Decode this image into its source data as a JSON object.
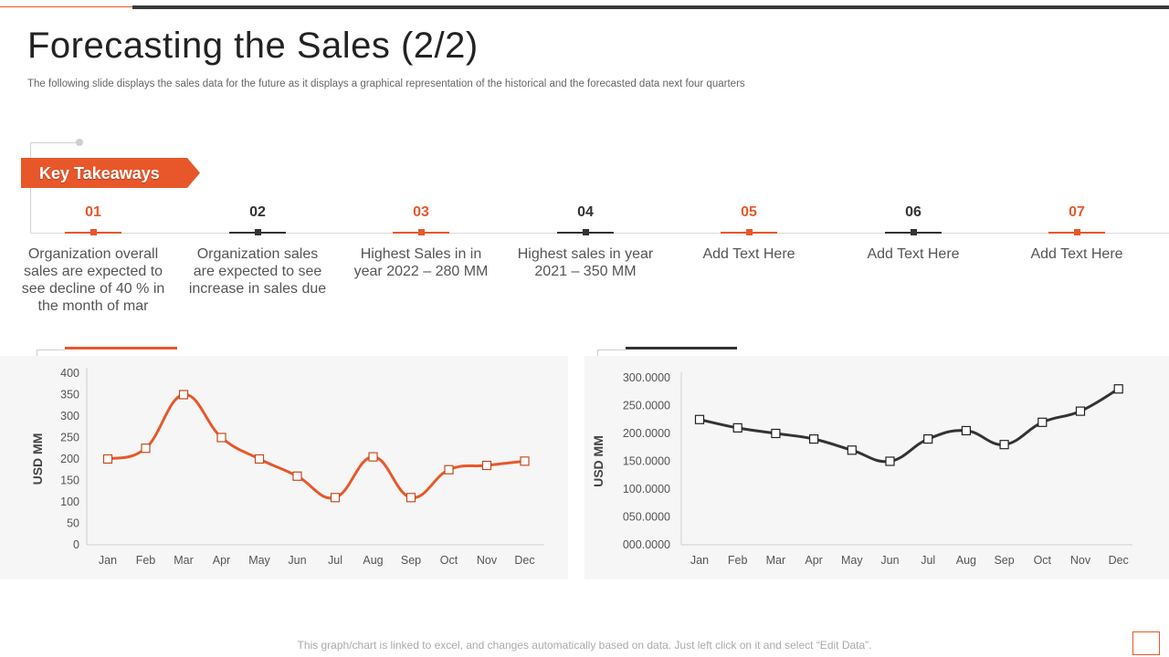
{
  "slide": {
    "title": "Forecasting the Sales (2/2)",
    "subtitle": "The following slide displays the sales data for the future as it displays a graphical representation of the historical and the forecasted data next four quarters",
    "footer": "This graph/chart is linked to excel, and changes automatically based on data. Just left click on it and select “Edit Data”."
  },
  "banner": {
    "label": "Key Takeaways"
  },
  "colors": {
    "accent": "#e8572a",
    "dark": "#333333"
  },
  "takeaways": [
    {
      "num": "01",
      "text": "Organization overall sales are expected to see decline of 40 % in the month of mar",
      "color": "#e8572a"
    },
    {
      "num": "02",
      "text": "Organization sales are expected to see increase in sales due",
      "color": "#333333"
    },
    {
      "num": "03",
      "text": "Highest Sales in in year 2022 – 280 MM",
      "color": "#e8572a"
    },
    {
      "num": "04",
      "text": "Highest sales in year 2021 – 350 MM",
      "color": "#333333"
    },
    {
      "num": "05",
      "text": "Add Text Here",
      "color": "#e8572a"
    },
    {
      "num": "06",
      "text": "Add Text Here",
      "color": "#333333"
    },
    {
      "num": "07",
      "text": "Add Text Here",
      "color": "#e8572a"
    }
  ],
  "chart_data": [
    {
      "type": "line",
      "color": "#e8572a",
      "categories": [
        "Jan",
        "Feb",
        "Mar",
        "Apr",
        "May",
        "Jun",
        "Jul",
        "Aug",
        "Sep",
        "Oct",
        "Nov",
        "Dec"
      ],
      "series": [
        {
          "values": [
            200,
            225,
            350,
            250,
            200,
            160,
            110,
            205,
            110,
            175,
            185,
            195
          ]
        }
      ],
      "ylabel": "USD MM",
      "ylim": [
        0,
        400
      ],
      "yticks": [
        "0",
        "50",
        "100",
        "150",
        "200",
        "250",
        "300",
        "350",
        "400"
      ],
      "grid": false
    },
    {
      "type": "line",
      "color": "#333333",
      "categories": [
        "Jan",
        "Feb",
        "Mar",
        "Apr",
        "May",
        "Jun",
        "Jul",
        "Aug",
        "Sep",
        "Oct",
        "Nov",
        "Dec"
      ],
      "series": [
        {
          "values": [
            225,
            210,
            200,
            190,
            170,
            150,
            190,
            205,
            180,
            220,
            240,
            280
          ]
        }
      ],
      "ylabel": "USD MM",
      "ylim": [
        0,
        300
      ],
      "yticks": [
        "000.0000",
        "050.0000",
        "100.0000",
        "150.0000",
        "200.0000",
        "250.0000",
        "300.0000"
      ],
      "grid": false
    }
  ]
}
